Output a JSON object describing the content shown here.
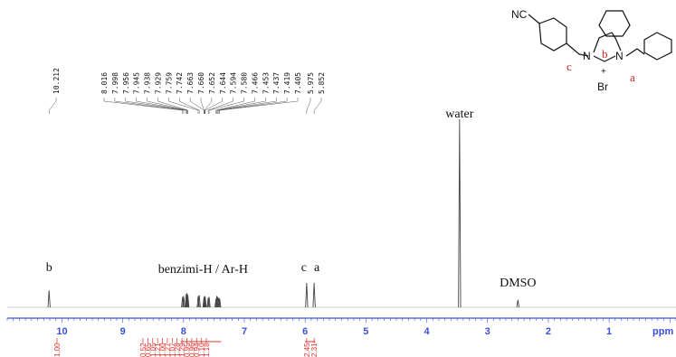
{
  "chart_data": {
    "type": "line",
    "title": "",
    "xlabel": "ppm",
    "xlim": [
      10.9,
      -0.1
    ],
    "x_reversed": true,
    "x_ticks": [
      10,
      9,
      8,
      7,
      6,
      5,
      4,
      3,
      2,
      1
    ],
    "peaks": [
      {
        "ppm": 10.212,
        "height": 0.09
      },
      {
        "ppm": 8.016,
        "height": 0.055
      },
      {
        "ppm": 7.998,
        "height": 0.06
      },
      {
        "ppm": 7.956,
        "height": 0.07
      },
      {
        "ppm": 7.945,
        "height": 0.075
      },
      {
        "ppm": 7.938,
        "height": 0.07
      },
      {
        "ppm": 7.929,
        "height": 0.065
      },
      {
        "ppm": 7.759,
        "height": 0.06
      },
      {
        "ppm": 7.742,
        "height": 0.065
      },
      {
        "ppm": 7.663,
        "height": 0.055
      },
      {
        "ppm": 7.66,
        "height": 0.055
      },
      {
        "ppm": 7.652,
        "height": 0.06
      },
      {
        "ppm": 7.644,
        "height": 0.055
      },
      {
        "ppm": 7.594,
        "height": 0.05
      },
      {
        "ppm": 7.58,
        "height": 0.055
      },
      {
        "ppm": 7.466,
        "height": 0.045
      },
      {
        "ppm": 7.453,
        "height": 0.06
      },
      {
        "ppm": 7.437,
        "height": 0.055
      },
      {
        "ppm": 7.419,
        "height": 0.05
      },
      {
        "ppm": 7.405,
        "height": 0.045
      },
      {
        "ppm": 5.975,
        "height": 0.13
      },
      {
        "ppm": 5.852,
        "height": 0.13
      },
      {
        "ppm": 3.46,
        "height": 1.0
      },
      {
        "ppm": 2.5,
        "height": 0.04
      }
    ],
    "peak_labels": [
      "10.212",
      "8.016",
      "7.998",
      "7.956",
      "7.945",
      "7.938",
      "7.929",
      "7.759",
      "7.742",
      "7.663",
      "7.660",
      "7.652",
      "7.644",
      "7.594",
      "7.580",
      "7.466",
      "7.453",
      "7.437",
      "7.419",
      "7.405",
      "5.975",
      "5.852"
    ],
    "annotations": [
      {
        "text": "b",
        "ppm": 10.212
      },
      {
        "text": "benzimi-H / Ar-H",
        "ppm": 7.68
      },
      {
        "text": "c",
        "ppm": 5.975
      },
      {
        "text": "a",
        "ppm": 5.852
      },
      {
        "text": "water",
        "ppm": 3.46
      },
      {
        "text": "DMSO",
        "ppm": 2.5
      }
    ],
    "integrals": [
      {
        "ppm": 10.212,
        "label": "1.00"
      },
      {
        "ppm": 8.016,
        "label": "0.52"
      },
      {
        "ppm": 7.998,
        "label": "0.65"
      },
      {
        "ppm": 7.956,
        "label": "1.05"
      },
      {
        "ppm": 7.938,
        "label": "1.21"
      },
      {
        "ppm": 7.759,
        "label": "1.00"
      },
      {
        "ppm": 7.742,
        "label": "1.27"
      },
      {
        "ppm": 7.66,
        "label": "1.07"
      },
      {
        "ppm": 7.644,
        "label": "1.28"
      },
      {
        "ppm": 7.594,
        "label": "1.29"
      },
      {
        "ppm": 7.58,
        "label": "0.95"
      },
      {
        "ppm": 7.466,
        "label": "0.96"
      },
      {
        "ppm": 7.453,
        "label": "0.94"
      },
      {
        "ppm": 7.437,
        "label": "1.10"
      },
      {
        "ppm": 7.419,
        "label": "1.18"
      },
      {
        "ppm": 5.975,
        "label": "2.45"
      },
      {
        "ppm": 5.852,
        "label": "2.31"
      }
    ],
    "structure_labels": {
      "nitrile": "NC",
      "counterion": "Br",
      "charge": "+",
      "n_left": "N",
      "n_right": "N",
      "label_a": "a",
      "label_b": "b",
      "label_c": "c"
    },
    "colors": {
      "axis": "#3b4fd8",
      "integral": "#e0302a",
      "spectrum": "#444444",
      "text": "#111111"
    }
  }
}
